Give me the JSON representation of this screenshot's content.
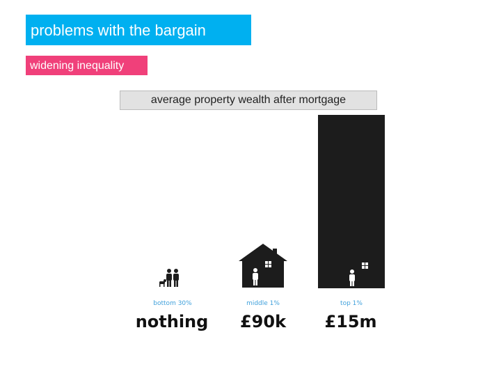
{
  "header": {
    "title": "problems with the bargain",
    "subtitle": "widening inequality"
  },
  "panel": {
    "title": "average property wealth after mortgage",
    "columns": [
      {
        "label": "bottom 30%",
        "value": "nothing"
      },
      {
        "label": "middle 1%",
        "value": "£90k"
      },
      {
        "label": "top 1%",
        "value": "£15m"
      }
    ]
  }
}
